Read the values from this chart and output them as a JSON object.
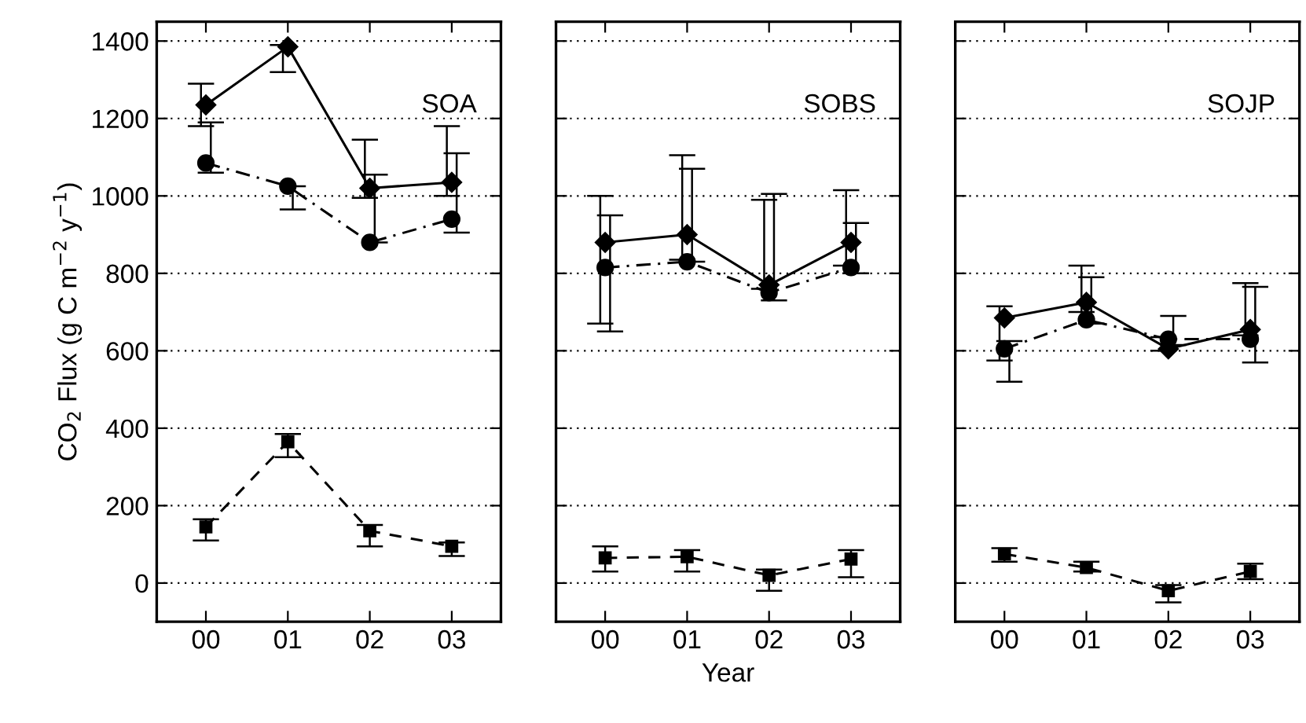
{
  "chart_data": [
    {
      "type": "line",
      "annotations": [
        "SOA"
      ],
      "ylabel": "CO$_{2}$ Flux (g C m$^{−2}$ y$^{−1}$)",
      "categories": [
        "00",
        "01",
        "02",
        "03"
      ],
      "ylim": [
        -100,
        1450
      ],
      "yticks": [
        0,
        200,
        400,
        600,
        800,
        1000,
        1200,
        1400
      ],
      "grid": "y",
      "legend": false,
      "series": [
        {
          "color": "#000000",
          "marker": "diamond",
          "line_style": "solid",
          "values": [
            1235,
            1385,
            1020,
            1035
          ],
          "errors": [
            [
              1180,
              1290
            ],
            [
              1320,
              1390
            ],
            [
              995,
              1145
            ],
            [
              1000,
              1180
            ]
          ]
        },
        {
          "color": "#000000",
          "marker": "circle",
          "line_style": "dashdot",
          "values": [
            1085,
            1025,
            880,
            940
          ],
          "errors": [
            [
              1060,
              1190
            ],
            [
              965,
              1025
            ],
            [
              880,
              1055
            ],
            [
              905,
              1110
            ]
          ]
        },
        {
          "color": "#000000",
          "marker": "square",
          "line_style": "dashed",
          "values": [
            145,
            365,
            135,
            95
          ],
          "errors": [
            [
              110,
              165
            ],
            [
              325,
              385
            ],
            [
              95,
              150
            ],
            [
              70,
              105
            ]
          ]
        }
      ]
    },
    {
      "type": "line",
      "annotations": [
        "SOBS"
      ],
      "xlabel": "Year",
      "categories": [
        "00",
        "01",
        "02",
        "03"
      ],
      "ylim": [
        -100,
        1450
      ],
      "yticks": [
        0,
        200,
        400,
        600,
        800,
        1000,
        1200,
        1400
      ],
      "grid": "y",
      "legend": false,
      "tick_labels": "x",
      "series": [
        {
          "color": "#000000",
          "marker": "diamond",
          "line_style": "solid",
          "values": [
            880,
            900,
            770,
            880
          ],
          "errors": [
            [
              670,
              1000
            ],
            [
              835,
              1105
            ],
            [
              760,
              990
            ],
            [
              820,
              1015
            ]
          ]
        },
        {
          "color": "#000000",
          "marker": "circle",
          "line_style": "dashdot",
          "values": [
            815,
            830,
            750,
            815
          ],
          "errors": [
            [
              650,
              950
            ],
            [
              830,
              1070
            ],
            [
              730,
              1005
            ],
            [
              800,
              930
            ]
          ]
        },
        {
          "color": "#000000",
          "marker": "square",
          "line_style": "dashed",
          "values": [
            65,
            68,
            20,
            62
          ],
          "errors": [
            [
              30,
              95
            ],
            [
              30,
              85
            ],
            [
              -20,
              35
            ],
            [
              15,
              85
            ]
          ]
        }
      ]
    },
    {
      "type": "line",
      "annotations": [
        "SOJP"
      ],
      "categories": [
        "00",
        "01",
        "02",
        "03"
      ],
      "ylim": [
        -100,
        1450
      ],
      "yticks": [
        0,
        200,
        400,
        600,
        800,
        1000,
        1200,
        1400
      ],
      "grid": "y",
      "legend": false,
      "tick_labels": "x",
      "series": [
        {
          "color": "#000000",
          "marker": "diamond",
          "line_style": "solid",
          "values": [
            685,
            725,
            605,
            655
          ],
          "errors": [
            [
              575,
              715
            ],
            [
              700,
              820
            ],
            [
              600,
              635
            ],
            [
              640,
              775
            ]
          ]
        },
        {
          "color": "#000000",
          "marker": "circle",
          "line_style": "dashdot",
          "values": [
            605,
            680,
            630,
            630
          ],
          "errors": [
            [
              520,
              625
            ],
            [
              670,
              790
            ],
            [
              615,
              690
            ],
            [
              570,
              765
            ]
          ]
        },
        {
          "color": "#000000",
          "marker": "square",
          "line_style": "dashed",
          "values": [
            75,
            40,
            -20,
            30
          ],
          "errors": [
            [
              55,
              90
            ],
            [
              30,
              55
            ],
            [
              -50,
              -5
            ],
            [
              10,
              50
            ]
          ]
        }
      ]
    }
  ]
}
